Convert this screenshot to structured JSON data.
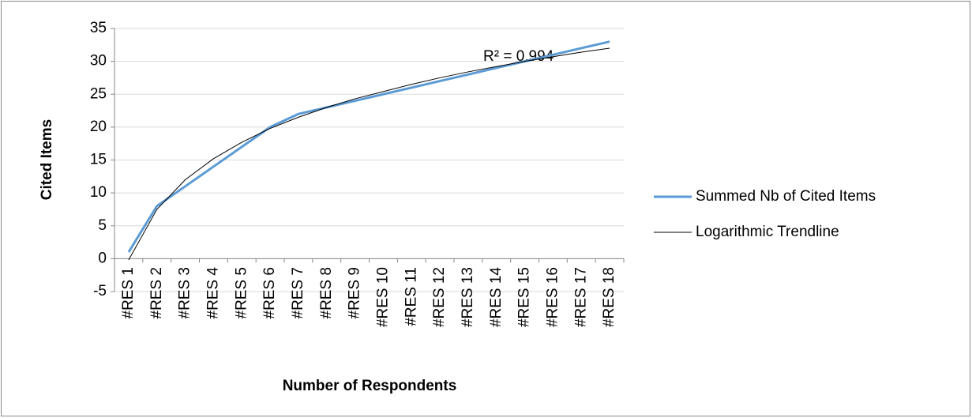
{
  "chart_data": {
    "type": "line",
    "x_label": "Number of Respondents",
    "y_label": "Cited Items",
    "annotation": "R² = 0.994",
    "categories": [
      "#RES 1",
      "#RES 2",
      "#RES 3",
      "#RES 4",
      "#RES 5",
      "#RES 6",
      "#RES 7",
      "#RES 8",
      "#RES 9",
      "#RES 10",
      "#RES 11",
      "#RES 12",
      "#RES 13",
      "#RES 14",
      "#RES 15",
      "#RES 16",
      "#RES 17",
      "#RES 18"
    ],
    "series": [
      {
        "name": "Summed Nb of Cited Items",
        "color": "#5b9bd5",
        "width": 3,
        "values": [
          1,
          8,
          11,
          14,
          17,
          20,
          22,
          23,
          24,
          25,
          26,
          27,
          28,
          29,
          30,
          31,
          32,
          33
        ]
      },
      {
        "name": "Logarithmic Trendline",
        "color": "#000000",
        "width": 1,
        "values": [
          -0.2,
          7.5,
          12.0,
          15.2,
          17.7,
          19.8,
          21.5,
          23.0,
          24.3,
          25.4,
          26.5,
          27.5,
          28.4,
          29.2,
          30.0,
          30.7,
          31.4,
          32.0
        ]
      }
    ],
    "ylim": [
      -5,
      35
    ],
    "yticks": [
      -5,
      0,
      5,
      10,
      15,
      20,
      25,
      30,
      35
    ],
    "grid": true,
    "legend": "right"
  }
}
